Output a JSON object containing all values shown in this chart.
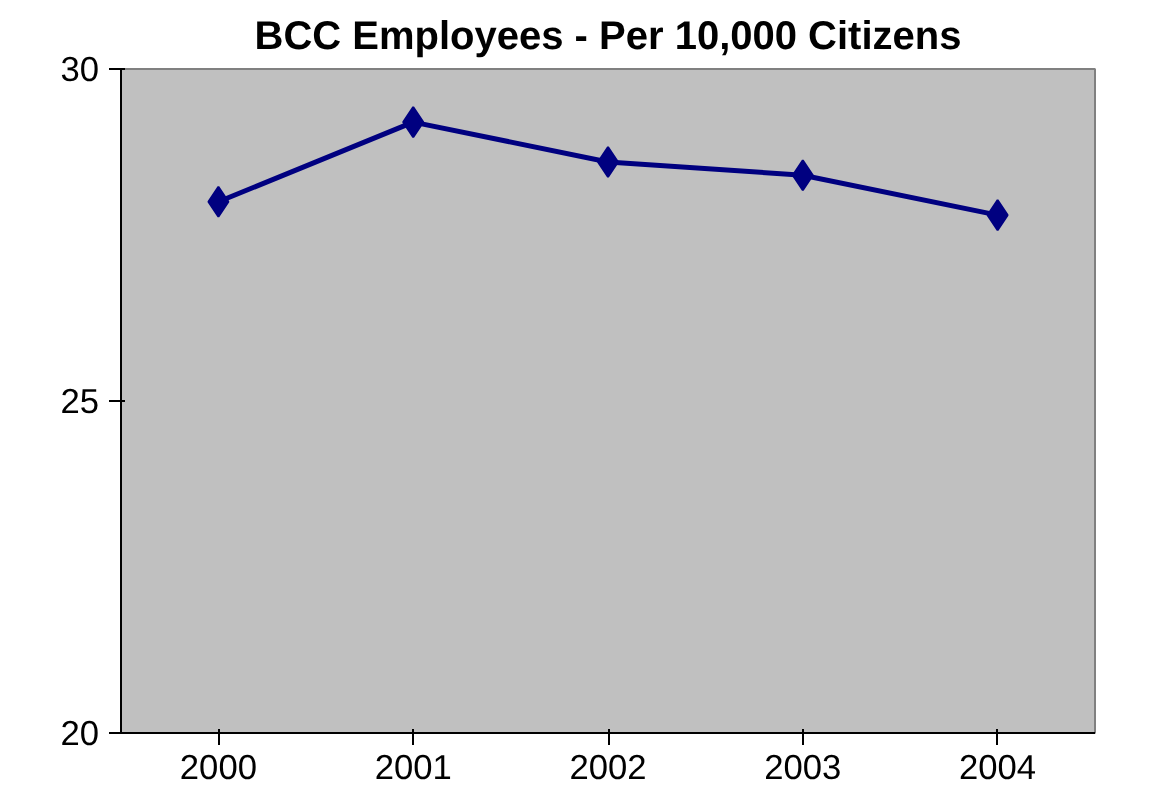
{
  "chart_data": {
    "type": "line",
    "title": "BCC Employees - Per 10,000 Citizens",
    "categories": [
      "2000",
      "2001",
      "2002",
      "2003",
      "2004"
    ],
    "series": [
      {
        "color": "#000080",
        "values": [
          28.0,
          29.2,
          28.6,
          28.4,
          27.8
        ]
      }
    ],
    "ylim": [
      20,
      30
    ],
    "yticks": [
      20,
      25,
      30
    ],
    "grid": false,
    "marker": "diamond",
    "line_style": "solid"
  }
}
